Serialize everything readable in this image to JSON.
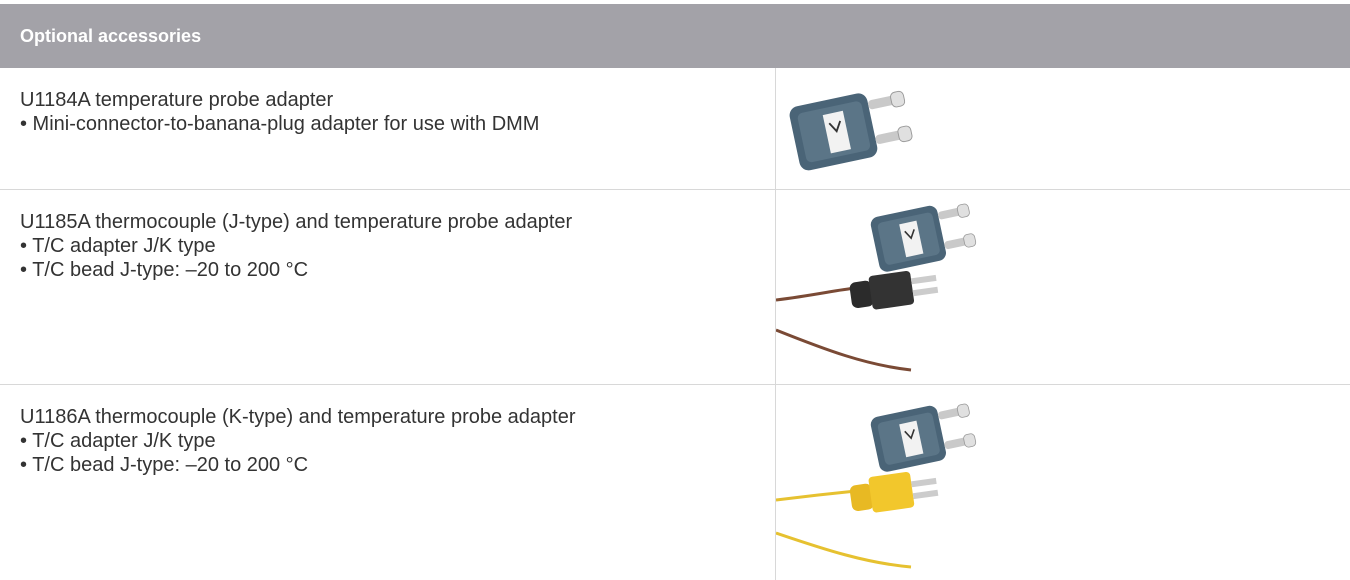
{
  "header": {
    "title": "Optional accessories"
  },
  "rows": [
    {
      "title": "U1184A temperature probe adapter",
      "bullets": [
        "• Mini-connector-to-banana-plug adapter for use with DMM"
      ]
    },
    {
      "title": "U1185A thermocouple (J-type) and temperature probe adapter",
      "bullets": [
        "• T/C adapter J/K type",
        "• T/C bead J-type: –20 to 200 °C"
      ]
    },
    {
      "title": "U1186A thermocouple (K-type) and temperature probe adapter",
      "bullets": [
        "• T/C adapter J/K type",
        "• T/C bead J-type: –20 to 200 °C"
      ]
    }
  ]
}
